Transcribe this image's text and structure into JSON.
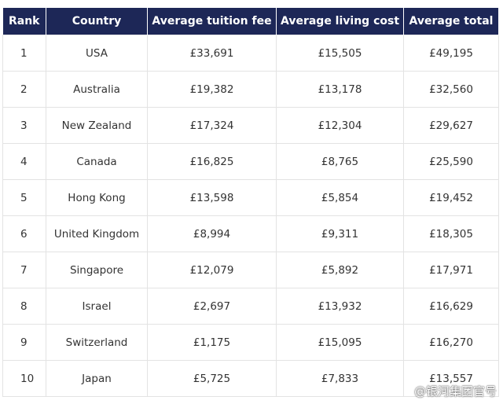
{
  "table": {
    "headers": [
      "Rank",
      "Country",
      "Average tuition fee",
      "Average living cost",
      "Average total"
    ],
    "rows": [
      [
        "1",
        "USA",
        "£33,691",
        "£15,505",
        "£49,195"
      ],
      [
        "2",
        "Australia",
        "£19,382",
        "£13,178",
        "£32,560"
      ],
      [
        "3",
        "New Zealand",
        "£17,324",
        "£12,304",
        "£29,627"
      ],
      [
        "4",
        "Canada",
        "£16,825",
        "£8,765",
        "£25,590"
      ],
      [
        "5",
        "Hong Kong",
        "£13,598",
        "£5,854",
        "£19,452"
      ],
      [
        "6",
        "United Kingdom",
        "£8,994",
        "£9,311",
        "£18,305"
      ],
      [
        "7",
        "Singapore",
        "£12,079",
        "£5,892",
        "£17,971"
      ],
      [
        "8",
        "Israel",
        "£2,697",
        "£13,932",
        "£16,629"
      ],
      [
        "9",
        "Switzerland",
        "£1,175",
        "£15,095",
        "£16,270"
      ],
      [
        "10",
        "Japan",
        "£5,725",
        "£7,833",
        "£13,557"
      ]
    ]
  },
  "watermark": "@银河集团官号"
}
